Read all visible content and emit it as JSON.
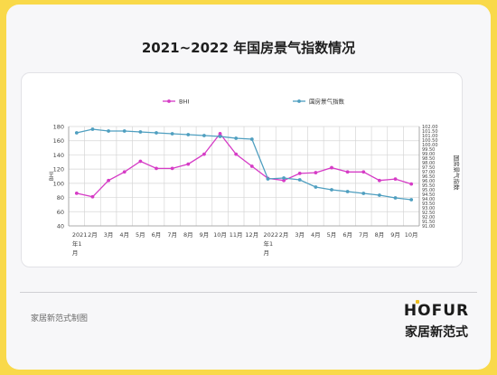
{
  "title": "2021~2022 年国房景气指数情况",
  "footer": {
    "source": "家居新范式制图",
    "brand_en": "HOFUR",
    "brand_cn": "家居新范式"
  },
  "colors": {
    "background": "#f9d94a",
    "bhi": "#d63cc6",
    "index": "#4f9fc0"
  },
  "chart_data": {
    "type": "line",
    "x_ticks": [
      [
        "2021",
        "年1",
        "月"
      ],
      [
        "2月"
      ],
      [
        "3月"
      ],
      [
        "4月"
      ],
      [
        "5月"
      ],
      [
        "6月"
      ],
      [
        "7月"
      ],
      [
        "8月"
      ],
      [
        "9月"
      ],
      [
        "10月"
      ],
      [
        "11月"
      ],
      [
        "12月"
      ],
      [
        "2022",
        "年1",
        "月"
      ],
      [
        "2月"
      ],
      [
        "3月"
      ],
      [
        "4月"
      ],
      [
        "5月"
      ],
      [
        "6月"
      ],
      [
        "7月"
      ],
      [
        "8月"
      ],
      [
        "9月"
      ],
      [
        "10月"
      ]
    ],
    "ylabel_left": "BHI",
    "ylabel_right": "国房景气指数",
    "ylim_left": [
      40,
      180
    ],
    "yticks_left": [
      "40",
      "60",
      "80",
      "100",
      "120",
      "140",
      "160",
      "180"
    ],
    "ylim_right": [
      91,
      102
    ],
    "yticks_right": [
      "91.00",
      "91.50",
      "92.00",
      "92.50",
      "93.00",
      "93.50",
      "94.00",
      "94.50",
      "95.00",
      "95.50",
      "96.00",
      "96.50",
      "97.00",
      "97.50",
      "98.00",
      "98.50",
      "99.00",
      "99.50",
      "100.00",
      "100.50",
      "101.00",
      "101.50",
      "102.00"
    ],
    "grid": true,
    "series": [
      {
        "name": "BHI",
        "axis": "left",
        "values": [
          86,
          81,
          104,
          116,
          131,
          121,
          121,
          127,
          141,
          170,
          141,
          124,
          107,
          104,
          114,
          115,
          122,
          116,
          116,
          104,
          106,
          99
        ]
      },
      {
        "name": "国房景气指数",
        "axis": "right",
        "values": [
          101.3,
          101.7,
          101.5,
          101.5,
          101.4,
          101.3,
          101.2,
          101.1,
          101.0,
          100.9,
          100.7,
          100.6,
          96.2,
          96.3,
          96.1,
          95.3,
          95.0,
          94.8,
          94.6,
          94.4,
          94.1,
          93.9
        ]
      }
    ]
  }
}
